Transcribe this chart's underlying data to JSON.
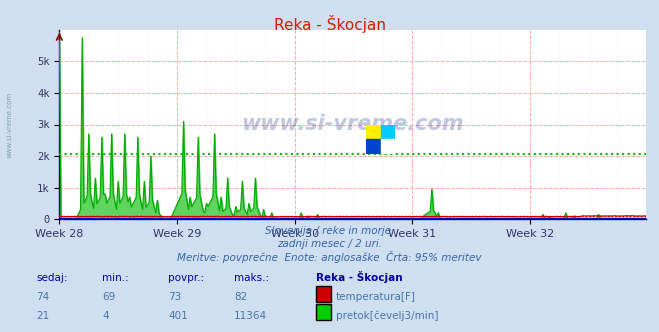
{
  "title": "Reka - Škocjan",
  "background_color": "#d0dff0",
  "plot_bg_color": "#ffffff",
  "grid_color_h": "#ffaaaa",
  "grid_color_v": "#ffcccc",
  "xlabel_weeks": [
    "Week 28",
    "Week 29",
    "Week 30",
    "Week 31",
    "Week 32"
  ],
  "ylim": [
    0,
    6000
  ],
  "yticks": [
    0,
    1000,
    2000,
    3000,
    4000,
    5000
  ],
  "ytick_labels": [
    "0",
    "1k",
    "2k",
    "3k",
    "4k",
    "5k"
  ],
  "avg_line_value": 2050,
  "avg_line_color": "#00bb00",
  "temp_line_color": "#cc0000",
  "temp_dotted_value": 100,
  "flow_line_color": "#00aa00",
  "flow_fill_color": "#44cc44",
  "title_color": "#cc2200",
  "axis_color": "#0000bb",
  "tick_color": "#333366",
  "subtitle_color": "#3366aa",
  "footer_num_color": "#4477aa",
  "footer_label_color": "#0000aa",
  "watermark_color": "#1a3a8a",
  "subtitle1": "Slovenija / reke in morje.",
  "subtitle2": "zadnji mesec / 2 uri.",
  "subtitle3": "Meritve: povprečne  Enote: anglosaške  Črta: 95% meritev",
  "footer_label1": "sedaj:",
  "footer_label2": "min.:",
  "footer_label3": "povpr.:",
  "footer_label4": "maks.:",
  "footer_label5": "Reka - Škocjan",
  "footer_temp_row": [
    "74",
    "69",
    "73",
    "82"
  ],
  "footer_flow_row": [
    "21",
    "4",
    "401",
    "11364"
  ],
  "footer_temp_label": "temperatura[F]",
  "footer_flow_label": "pretok[čevelj3/min]",
  "total_points": 360,
  "week_positions": [
    0,
    72,
    144,
    216,
    288
  ],
  "left_label": "www.si-vreme.com"
}
